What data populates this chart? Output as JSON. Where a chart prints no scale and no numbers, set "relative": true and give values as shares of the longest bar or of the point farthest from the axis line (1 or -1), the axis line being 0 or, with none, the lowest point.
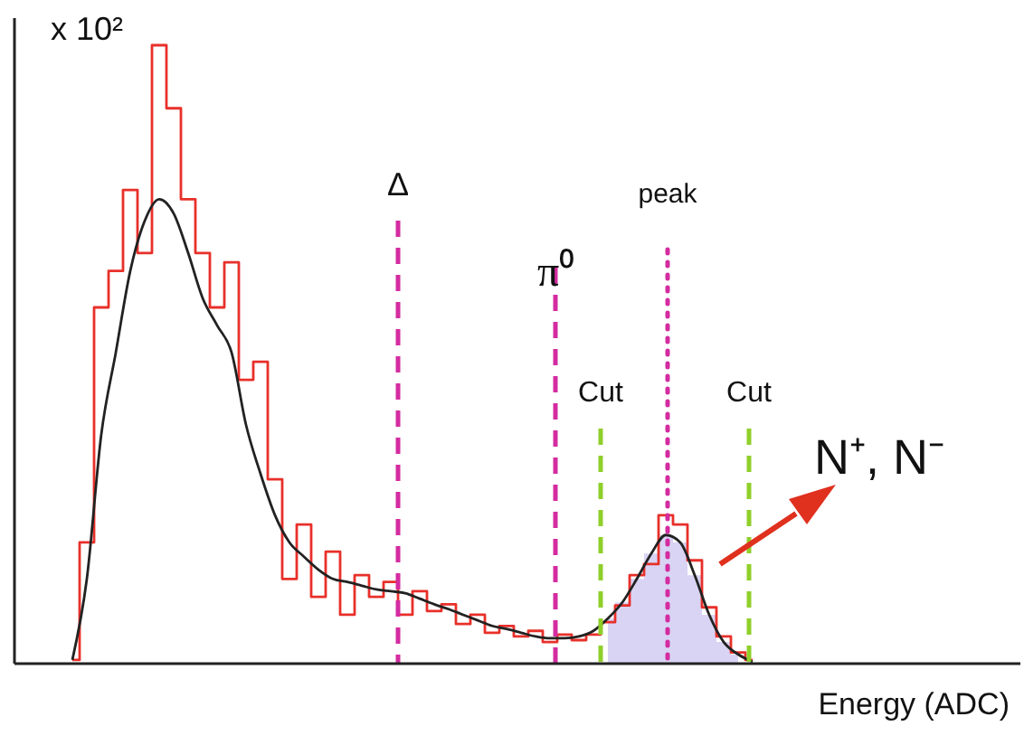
{
  "chart_data": {
    "type": "step",
    "relative": true,
    "ylabel": "x 10²",
    "xlabel": "Energy (ADC)",
    "categories": [
      null,
      null,
      null,
      null,
      null,
      null,
      null,
      null,
      null,
      null,
      null,
      null,
      null,
      null,
      null,
      null,
      null,
      null,
      null,
      null,
      null,
      null,
      null,
      null,
      null,
      null,
      null,
      null,
      null,
      null,
      null,
      null,
      null,
      null,
      null,
      null,
      null,
      null,
      null,
      null,
      null,
      null,
      null,
      null,
      null,
      null,
      null,
      null,
      null,
      null,
      null,
      null,
      null,
      null,
      null,
      null,
      null,
      null,
      null,
      null,
      null,
      null,
      null,
      null,
      null,
      null,
      null,
      null,
      null,
      null
    ],
    "series": [
      {
        "type": "area",
        "color": "#d9d4f4",
        "values": [
          null,
          null,
          null,
          null,
          null,
          null,
          null,
          null,
          null,
          null,
          null,
          null,
          null,
          null,
          null,
          null,
          null,
          null,
          null,
          null,
          null,
          null,
          null,
          null,
          null,
          null,
          null,
          null,
          null,
          null,
          null,
          null,
          null,
          null,
          null,
          null,
          null,
          null,
          null,
          null,
          null,
          0.073,
          0.099,
          0.137,
          0.178,
          0.208,
          0.196,
          0.143,
          0.079,
          0.035,
          0.015,
          null,
          null,
          null,
          null,
          null,
          null,
          null,
          null,
          null,
          null,
          null,
          null,
          null,
          null,
          null,
          null,
          null,
          null,
          null
        ]
      },
      {
        "color": "#e8302a",
        "values": [
          null,
          null,
          null,
          null,
          0.006,
          0.196,
          0.576,
          0.635,
          0.766,
          0.664,
          1,
          0.898,
          0.751,
          0.664,
          0.576,
          0.649,
          0.459,
          0.488,
          0.298,
          0.137,
          0.225,
          0.108,
          0.181,
          0.079,
          0.143,
          0.108,
          0.132,
          0.079,
          0.117,
          0.085,
          0.096,
          0.064,
          0.079,
          0.05,
          0.061,
          0.044,
          0.053,
          0.035,
          0.047,
          0.038,
          0.047,
          0.067,
          0.094,
          0.143,
          0.161,
          0.24,
          0.225,
          0.167,
          0.091,
          0.044,
          0.018,
          0.006,
          null,
          null,
          null,
          null,
          null,
          null,
          null,
          null,
          null,
          null,
          null,
          null,
          null,
          null,
          null,
          null,
          null,
          null
        ]
      },
      {
        "type": "line",
        "color": "#222222",
        "values": [
          null,
          null,
          null,
          null,
          0.006,
          0.137,
          0.371,
          0.503,
          0.635,
          0.716,
          0.751,
          0.728,
          0.664,
          0.591,
          0.547,
          0.503,
          0.386,
          0.307,
          0.24,
          0.196,
          0.173,
          0.152,
          0.137,
          0.132,
          0.126,
          0.12,
          0.117,
          0.114,
          0.105,
          0.096,
          0.088,
          0.079,
          0.07,
          0.061,
          0.056,
          0.05,
          0.044,
          0.041,
          0.041,
          0.044,
          0.053,
          0.073,
          0.099,
          0.137,
          0.178,
          0.208,
          0.196,
          0.143,
          0.079,
          0.035,
          0.015,
          0.003,
          null,
          null,
          null,
          null,
          null,
          null,
          null,
          null,
          null,
          null,
          null,
          null,
          null,
          null,
          null,
          null,
          null,
          null
        ]
      }
    ],
    "annotations": [
      "Δ",
      "π⁰",
      "peak",
      "Cut",
      "Cut",
      "N⁺, N⁻"
    ]
  }
}
